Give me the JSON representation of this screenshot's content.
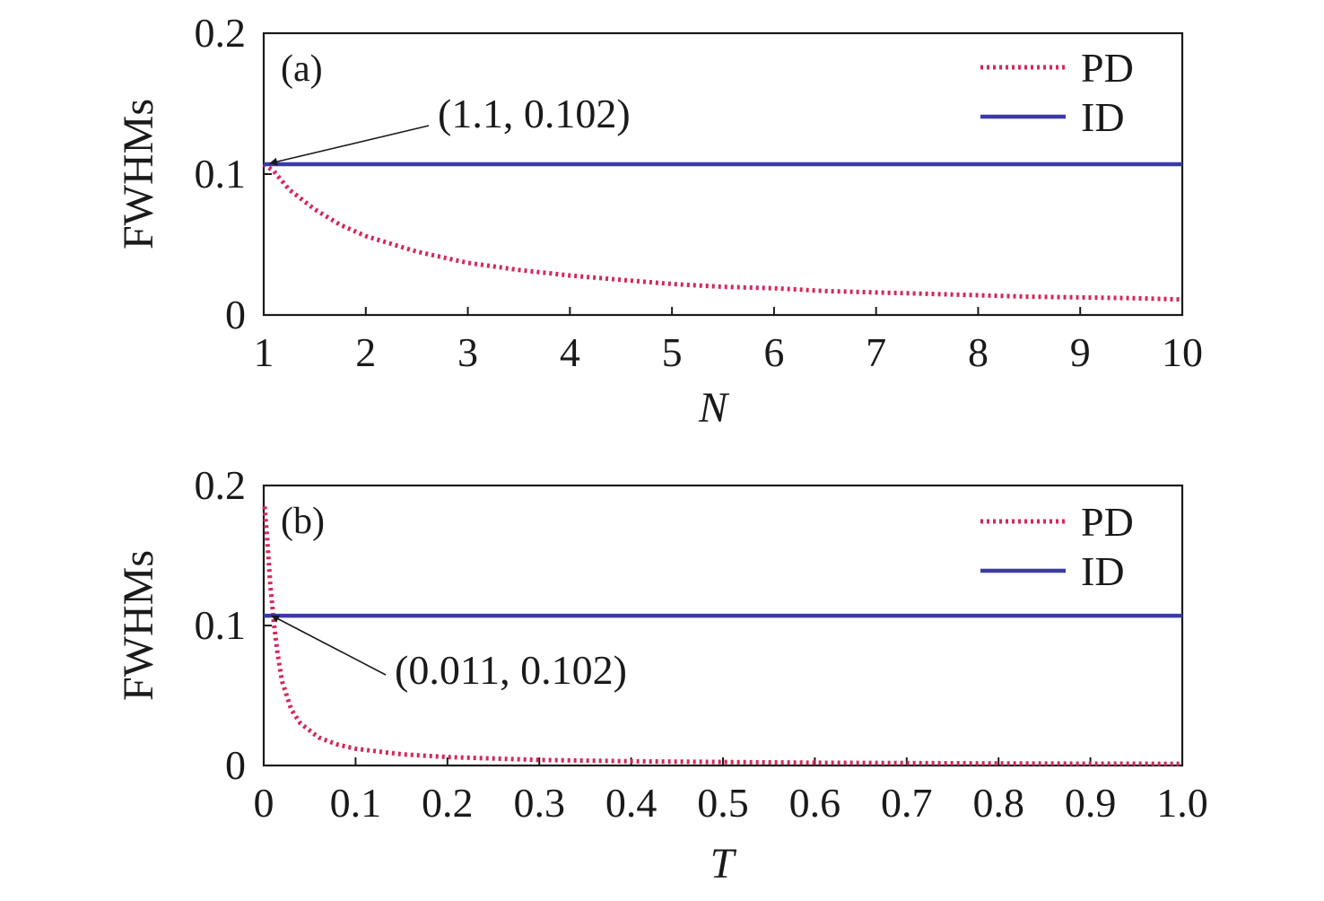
{
  "chart_data": [
    {
      "type": "line",
      "panel_label": "(a)",
      "xlabel": "N",
      "ylabel": "FWHMs",
      "xlim": [
        1,
        10
      ],
      "ylim": [
        0,
        0.2
      ],
      "x_ticks": [
        "1",
        "2",
        "3",
        "4",
        "5",
        "6",
        "7",
        "8",
        "9",
        "10"
      ],
      "y_ticks": [
        "0",
        "0.1",
        "0.2"
      ],
      "legend_position": "top-right",
      "series": [
        {
          "name": "PD",
          "style": "dotted",
          "color": "#d4285a",
          "x": [
            1.0,
            1.1,
            1.25,
            1.5,
            1.75,
            2.0,
            2.5,
            3.0,
            3.5,
            4.0,
            4.5,
            5.0,
            5.5,
            6.0,
            6.5,
            7.0,
            7.5,
            8.0,
            8.5,
            9.0,
            9.5,
            10.0
          ],
          "values": [
            0.107,
            0.102,
            0.089,
            0.075,
            0.064,
            0.056,
            0.045,
            0.037,
            0.032,
            0.028,
            0.025,
            0.022,
            0.02,
            0.019,
            0.017,
            0.016,
            0.015,
            0.014,
            0.013,
            0.0125,
            0.012,
            0.011
          ]
        },
        {
          "name": "ID",
          "style": "solid",
          "color": "#3b3ba8",
          "x": [
            1.0,
            10.0
          ],
          "values": [
            0.107,
            0.107
          ]
        }
      ],
      "annotations": [
        {
          "text": "(1.1, 0.102)",
          "x": 1.1,
          "y": 0.102
        }
      ]
    },
    {
      "type": "line",
      "panel_label": "(b)",
      "xlabel": "T",
      "ylabel": "FWHMs",
      "xlim": [
        0,
        1.0
      ],
      "ylim": [
        0,
        0.2
      ],
      "x_ticks": [
        "0",
        "0.1",
        "0.2",
        "0.3",
        "0.4",
        "0.5",
        "0.6",
        "0.7",
        "0.8",
        "0.9",
        "1.0"
      ],
      "y_ticks": [
        "0",
        "0.1",
        "0.2"
      ],
      "legend_position": "top-right",
      "series": [
        {
          "name": "PD",
          "style": "dotted",
          "color": "#d4285a",
          "x": [
            0.001,
            0.004,
            0.007,
            0.011,
            0.015,
            0.02,
            0.03,
            0.04,
            0.06,
            0.08,
            0.1,
            0.15,
            0.2,
            0.3,
            0.4,
            0.5,
            0.6,
            0.7,
            0.8,
            0.9,
            1.0
          ],
          "values": [
            0.185,
            0.16,
            0.13,
            0.102,
            0.08,
            0.06,
            0.04,
            0.03,
            0.02,
            0.015,
            0.012,
            0.008,
            0.006,
            0.004,
            0.003,
            0.0025,
            0.002,
            0.0017,
            0.0015,
            0.0013,
            0.0012
          ]
        },
        {
          "name": "ID",
          "style": "solid",
          "color": "#3b3ba8",
          "x": [
            0.0,
            1.0
          ],
          "values": [
            0.107,
            0.107
          ]
        }
      ],
      "annotations": [
        {
          "text": "(0.011, 0.102)",
          "x": 0.011,
          "y": 0.102
        }
      ]
    }
  ]
}
